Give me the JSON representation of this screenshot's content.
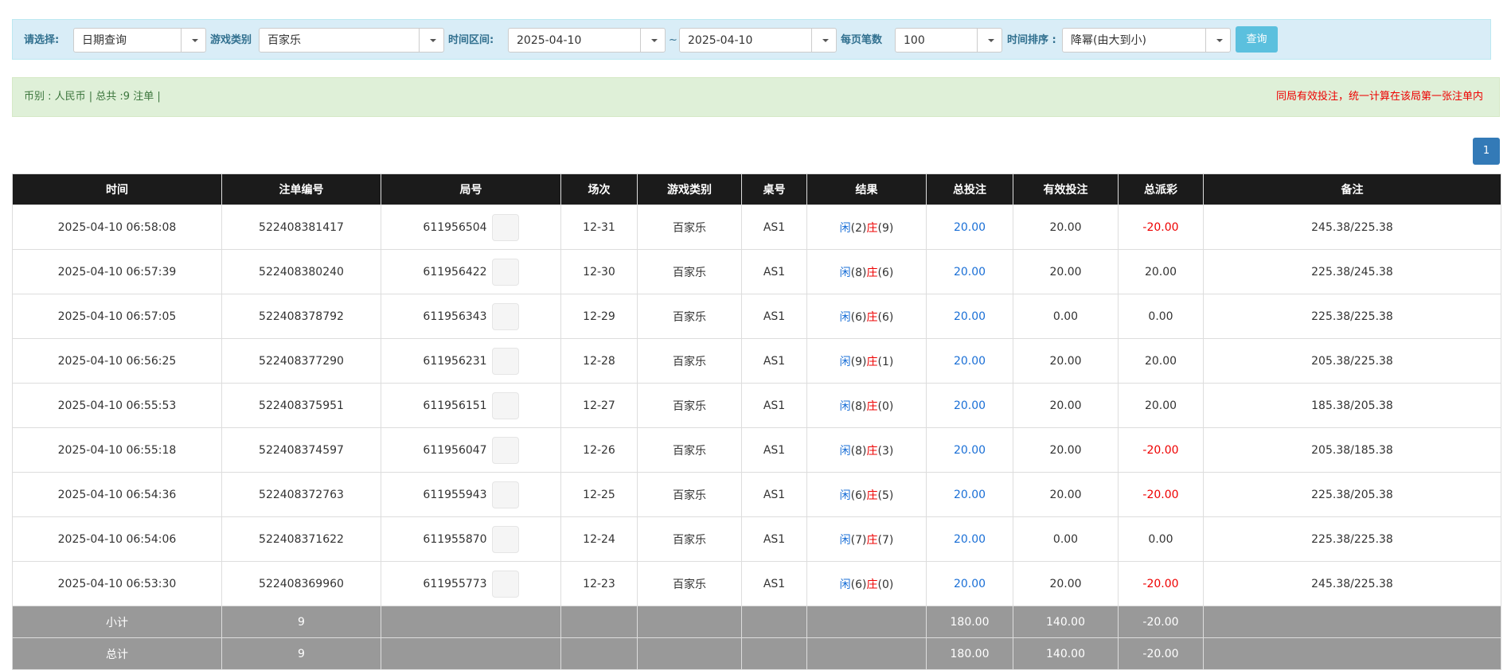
{
  "filters": {
    "select_label": "请选择:",
    "select_value": "日期查询",
    "game_label": "游戏类别",
    "game_value": "百家乐",
    "range_label": "时间区间:",
    "date_from": "2025-04-10",
    "range_sep": "~",
    "date_to": "2025-04-10",
    "page_size_label": "每页笔数",
    "page_size": "100",
    "sort_label": "时间排序 :",
    "sort_value": "降幂(由大到小)",
    "button": "查询"
  },
  "info": {
    "summary": "币别 : 人民币 | 总共 :9 注单 |",
    "notice": "同局有效投注，统一计算在该局第一张注单内"
  },
  "pagination": [
    "1"
  ],
  "table": {
    "headers": [
      "时间",
      "注单编号",
      "局号",
      "场次",
      "游戏类别",
      "桌号",
      "结果",
      "总投注",
      "有效投注",
      "总派彩",
      "备注"
    ],
    "rows": [
      [
        "2025-04-10 06:58:08",
        "522408381417",
        "611956504",
        "12-31",
        "百家乐",
        "AS1",
        [
          "闲",
          "(2)",
          "庄",
          "(9)"
        ],
        "20.00",
        "20.00",
        "-20.00",
        "245.38/225.38"
      ],
      [
        "2025-04-10 06:57:39",
        "522408380240",
        "611956422",
        "12-30",
        "百家乐",
        "AS1",
        [
          "闲",
          "(8)",
          "庄",
          "(6)"
        ],
        "20.00",
        "20.00",
        "20.00",
        "225.38/245.38"
      ],
      [
        "2025-04-10 06:57:05",
        "522408378792",
        "611956343",
        "12-29",
        "百家乐",
        "AS1",
        [
          "闲",
          "(6)",
          "庄",
          "(6)"
        ],
        "20.00",
        "0.00",
        "0.00",
        "225.38/225.38"
      ],
      [
        "2025-04-10 06:56:25",
        "522408377290",
        "611956231",
        "12-28",
        "百家乐",
        "AS1",
        [
          "闲",
          "(9)",
          "庄",
          "(1)"
        ],
        "20.00",
        "20.00",
        "20.00",
        "205.38/225.38"
      ],
      [
        "2025-04-10 06:55:53",
        "522408375951",
        "611956151",
        "12-27",
        "百家乐",
        "AS1",
        [
          "闲",
          "(8)",
          "庄",
          "(0)"
        ],
        "20.00",
        "20.00",
        "20.00",
        "185.38/205.38"
      ],
      [
        "2025-04-10 06:55:18",
        "522408374597",
        "611956047",
        "12-26",
        "百家乐",
        "AS1",
        [
          "闲",
          "(8)",
          "庄",
          "(3)"
        ],
        "20.00",
        "20.00",
        "-20.00",
        "205.38/185.38"
      ],
      [
        "2025-04-10 06:54:36",
        "522408372763",
        "611955943",
        "12-25",
        "百家乐",
        "AS1",
        [
          "闲",
          "(6)",
          "庄",
          "(5)"
        ],
        "20.00",
        "20.00",
        "-20.00",
        "225.38/205.38"
      ],
      [
        "2025-04-10 06:54:06",
        "522408371622",
        "611955870",
        "12-24",
        "百家乐",
        "AS1",
        [
          "闲",
          "(7)",
          "庄",
          "(7)"
        ],
        "20.00",
        "0.00",
        "0.00",
        "225.38/225.38"
      ],
      [
        "2025-04-10 06:53:30",
        "522408369960",
        "611955773",
        "12-23",
        "百家乐",
        "AS1",
        [
          "闲",
          "(6)",
          "庄",
          "(0)"
        ],
        "20.00",
        "20.00",
        "-20.00",
        "245.38/225.38"
      ]
    ],
    "summary": [
      [
        "小计",
        "9",
        "180.00",
        "140.00",
        "-20.00"
      ],
      [
        "总计",
        "9",
        "180.00",
        "140.00",
        "-20.00"
      ]
    ]
  }
}
